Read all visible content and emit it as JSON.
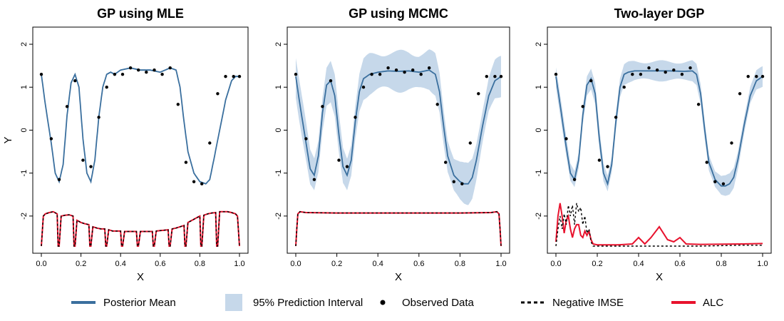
{
  "legend": {
    "mean": "Posterior Mean",
    "interval": "95% Prediction Interval",
    "observed": "Observed Data",
    "imse": "Negative IMSE",
    "alc": "ALC"
  },
  "colors": {
    "mean": "#3a6f9e",
    "band": "#c6d8ea",
    "observed": "#000000",
    "imse": "#000000",
    "alc": "#e8122d"
  },
  "chart_data": [
    {
      "type": "line",
      "title": "GP using MLE",
      "xlabel": "X",
      "ylabel": "Y",
      "xlim": [
        0,
        1
      ],
      "ylim": [
        -2.7,
        2.2
      ],
      "xticks": [
        "0.0",
        "0.2",
        "0.4",
        "0.6",
        "0.8",
        "1.0"
      ],
      "yticks": [
        "2",
        "1",
        "0",
        "-1",
        "-2"
      ],
      "observed": {
        "x": [
          0.0,
          0.05,
          0.09,
          0.13,
          0.17,
          0.21,
          0.25,
          0.29,
          0.33,
          0.37,
          0.41,
          0.45,
          0.49,
          0.53,
          0.57,
          0.61,
          0.65,
          0.69,
          0.73,
          0.77,
          0.81,
          0.85,
          0.89,
          0.93,
          0.97,
          1.0
        ],
        "y": [
          1.3,
          -0.2,
          -1.15,
          0.55,
          1.15,
          -0.7,
          -0.85,
          0.3,
          1.0,
          1.3,
          1.3,
          1.45,
          1.4,
          1.35,
          1.4,
          1.3,
          1.45,
          0.6,
          -0.75,
          -1.2,
          -1.25,
          -0.3,
          0.85,
          1.25,
          1.25,
          1.25
        ]
      },
      "mean": {
        "x": [
          0.0,
          0.02,
          0.05,
          0.07,
          0.09,
          0.11,
          0.13,
          0.15,
          0.17,
          0.19,
          0.21,
          0.23,
          0.25,
          0.27,
          0.29,
          0.31,
          0.33,
          0.35,
          0.37,
          0.4,
          0.45,
          0.5,
          0.55,
          0.6,
          0.65,
          0.68,
          0.7,
          0.72,
          0.74,
          0.77,
          0.8,
          0.83,
          0.85,
          0.87,
          0.9,
          0.93,
          0.96,
          0.98,
          1.0
        ],
        "y": [
          1.3,
          0.6,
          -0.3,
          -1.0,
          -1.2,
          -0.8,
          0.35,
          1.1,
          1.3,
          1.0,
          -0.2,
          -1.0,
          -1.2,
          -0.7,
          0.3,
          1.0,
          1.3,
          1.35,
          1.3,
          1.4,
          1.45,
          1.4,
          1.4,
          1.35,
          1.45,
          1.4,
          1.0,
          0.2,
          -0.5,
          -1.0,
          -1.2,
          -1.25,
          -1.15,
          -0.7,
          0.0,
          0.7,
          1.15,
          1.25,
          1.25
        ]
      },
      "band_halfwidth": 0.02,
      "imse": {
        "x": [
          0.0,
          0.01,
          0.02,
          0.04,
          0.06,
          0.08,
          0.085,
          0.09,
          0.1,
          0.12,
          0.14,
          0.16,
          0.165,
          0.17,
          0.18,
          0.2,
          0.22,
          0.24,
          0.245,
          0.25,
          0.26,
          0.28,
          0.3,
          0.32,
          0.325,
          0.33,
          0.34,
          0.36,
          0.38,
          0.4,
          0.405,
          0.41,
          0.42,
          0.44,
          0.46,
          0.48,
          0.485,
          0.49,
          0.5,
          0.52,
          0.54,
          0.56,
          0.565,
          0.57,
          0.58,
          0.6,
          0.62,
          0.64,
          0.645,
          0.65,
          0.66,
          0.68,
          0.7,
          0.72,
          0.725,
          0.73,
          0.74,
          0.76,
          0.78,
          0.8,
          0.805,
          0.81,
          0.82,
          0.84,
          0.86,
          0.88,
          0.885,
          0.89,
          0.9,
          0.92,
          0.94,
          0.96,
          0.98,
          0.99,
          1.0
        ],
        "y": [
          -2.7,
          -2.0,
          -1.95,
          -1.92,
          -1.9,
          -1.95,
          -2.7,
          -2.7,
          -2.0,
          -1.98,
          -1.97,
          -2.0,
          -2.7,
          -2.7,
          -2.1,
          -2.15,
          -2.18,
          -2.2,
          -2.7,
          -2.7,
          -2.25,
          -2.28,
          -2.3,
          -2.3,
          -2.7,
          -2.7,
          -2.32,
          -2.35,
          -2.35,
          -2.35,
          -2.7,
          -2.7,
          -2.36,
          -2.36,
          -2.36,
          -2.36,
          -2.7,
          -2.7,
          -2.36,
          -2.36,
          -2.36,
          -2.36,
          -2.7,
          -2.7,
          -2.35,
          -2.34,
          -2.33,
          -2.32,
          -2.7,
          -2.7,
          -2.3,
          -2.28,
          -2.25,
          -2.22,
          -2.7,
          -2.7,
          -2.15,
          -2.1,
          -2.05,
          -2.0,
          -2.7,
          -2.7,
          -1.98,
          -1.95,
          -1.93,
          -1.92,
          -2.7,
          -2.7,
          -1.9,
          -1.9,
          -1.9,
          -1.92,
          -1.95,
          -2.0,
          -2.7
        ]
      },
      "alc": {
        "x": [
          0.0,
          0.01,
          0.02,
          0.04,
          0.06,
          0.08,
          0.085,
          0.09,
          0.1,
          0.12,
          0.14,
          0.16,
          0.165,
          0.17,
          0.18,
          0.2,
          0.22,
          0.24,
          0.245,
          0.25,
          0.26,
          0.28,
          0.3,
          0.32,
          0.325,
          0.33,
          0.34,
          0.36,
          0.38,
          0.4,
          0.405,
          0.41,
          0.42,
          0.44,
          0.46,
          0.48,
          0.485,
          0.49,
          0.5,
          0.52,
          0.54,
          0.56,
          0.565,
          0.57,
          0.58,
          0.6,
          0.62,
          0.64,
          0.645,
          0.65,
          0.66,
          0.68,
          0.7,
          0.72,
          0.725,
          0.73,
          0.74,
          0.76,
          0.78,
          0.8,
          0.805,
          0.81,
          0.82,
          0.84,
          0.86,
          0.88,
          0.885,
          0.89,
          0.9,
          0.92,
          0.94,
          0.96,
          0.98,
          0.99,
          1.0
        ],
        "y": [
          -2.7,
          -2.0,
          -1.95,
          -1.92,
          -1.9,
          -1.95,
          -2.7,
          -2.7,
          -2.0,
          -1.98,
          -1.97,
          -2.0,
          -2.7,
          -2.7,
          -2.1,
          -2.15,
          -2.18,
          -2.2,
          -2.7,
          -2.7,
          -2.25,
          -2.28,
          -2.3,
          -2.3,
          -2.7,
          -2.7,
          -2.32,
          -2.35,
          -2.35,
          -2.35,
          -2.7,
          -2.7,
          -2.36,
          -2.36,
          -2.36,
          -2.36,
          -2.7,
          -2.7,
          -2.36,
          -2.36,
          -2.36,
          -2.36,
          -2.7,
          -2.7,
          -2.35,
          -2.34,
          -2.33,
          -2.32,
          -2.7,
          -2.7,
          -2.3,
          -2.28,
          -2.25,
          -2.22,
          -2.7,
          -2.7,
          -2.15,
          -2.1,
          -2.05,
          -2.0,
          -2.7,
          -2.7,
          -1.98,
          -1.95,
          -1.93,
          -1.92,
          -2.7,
          -2.7,
          -1.9,
          -1.9,
          -1.9,
          -1.92,
          -1.95,
          -2.0,
          -2.7
        ]
      }
    },
    {
      "type": "line",
      "title": "GP using MCMC",
      "xlabel": "X",
      "ylabel": "",
      "xlim": [
        0,
        1
      ],
      "ylim": [
        -2.7,
        2.2
      ],
      "xticks": [
        "0.0",
        "0.2",
        "0.4",
        "0.6",
        "0.8",
        "1.0"
      ],
      "yticks": [
        "2",
        "1",
        "0",
        "-1",
        "-2"
      ],
      "observed": {
        "x": [
          0.0,
          0.05,
          0.09,
          0.13,
          0.17,
          0.21,
          0.25,
          0.29,
          0.33,
          0.37,
          0.41,
          0.45,
          0.49,
          0.53,
          0.57,
          0.61,
          0.65,
          0.69,
          0.73,
          0.77,
          0.81,
          0.85,
          0.89,
          0.93,
          0.97,
          1.0
        ],
        "y": [
          1.3,
          -0.2,
          -1.15,
          0.55,
          1.15,
          -0.7,
          -0.85,
          0.3,
          1.0,
          1.3,
          1.3,
          1.45,
          1.4,
          1.35,
          1.4,
          1.3,
          1.45,
          0.6,
          -0.75,
          -1.2,
          -1.25,
          -0.3,
          0.85,
          1.25,
          1.25,
          1.25
        ]
      },
      "mean": {
        "x": [
          0.0,
          0.02,
          0.05,
          0.07,
          0.09,
          0.11,
          0.13,
          0.15,
          0.17,
          0.19,
          0.21,
          0.23,
          0.25,
          0.27,
          0.29,
          0.31,
          0.33,
          0.36,
          0.4,
          0.45,
          0.5,
          0.55,
          0.6,
          0.65,
          0.68,
          0.7,
          0.72,
          0.74,
          0.77,
          0.8,
          0.82,
          0.84,
          0.86,
          0.88,
          0.91,
          0.94,
          0.97,
          1.0
        ],
        "y": [
          1.25,
          0.6,
          -0.3,
          -0.9,
          -1.05,
          -0.6,
          0.4,
          1.05,
          1.15,
          0.8,
          -0.1,
          -0.85,
          -1.05,
          -0.7,
          0.2,
          0.9,
          1.2,
          1.3,
          1.35,
          1.38,
          1.37,
          1.38,
          1.35,
          1.4,
          1.3,
          0.9,
          0.1,
          -0.6,
          -1.05,
          -1.2,
          -1.25,
          -1.25,
          -1.1,
          -0.7,
          0.1,
          0.8,
          1.15,
          1.25
        ]
      },
      "band_halfwidth": 0.5,
      "imse": {
        "x": [
          0.0,
          0.005,
          0.01,
          0.02,
          0.05,
          0.2,
          0.5,
          0.8,
          0.95,
          0.98,
          0.99,
          0.995,
          1.0
        ],
        "y": [
          -2.7,
          -2.3,
          -1.95,
          -1.9,
          -1.92,
          -1.93,
          -1.93,
          -1.93,
          -1.92,
          -1.9,
          -1.95,
          -2.3,
          -2.7
        ]
      },
      "alc": {
        "x": [
          0.0,
          0.005,
          0.01,
          0.02,
          0.05,
          0.2,
          0.5,
          0.8,
          0.95,
          0.98,
          0.99,
          0.995,
          1.0
        ],
        "y": [
          -2.7,
          -2.3,
          -1.95,
          -1.9,
          -1.92,
          -1.93,
          -1.93,
          -1.93,
          -1.92,
          -1.9,
          -1.95,
          -2.3,
          -2.7
        ]
      }
    },
    {
      "type": "line",
      "title": "Two-layer DGP",
      "xlabel": "X",
      "ylabel": "",
      "xlim": [
        0,
        1
      ],
      "ylim": [
        -2.7,
        2.2
      ],
      "xticks": [
        "0.0",
        "0.2",
        "0.4",
        "0.6",
        "0.8",
        "1.0"
      ],
      "yticks": [
        "2",
        "1",
        "0",
        "-1",
        "-2"
      ],
      "observed": {
        "x": [
          0.0,
          0.05,
          0.09,
          0.13,
          0.17,
          0.21,
          0.25,
          0.29,
          0.33,
          0.37,
          0.41,
          0.45,
          0.49,
          0.53,
          0.57,
          0.61,
          0.65,
          0.69,
          0.73,
          0.77,
          0.81,
          0.85,
          0.89,
          0.93,
          0.97,
          1.0
        ],
        "y": [
          1.3,
          -0.2,
          -1.15,
          0.55,
          1.15,
          -0.7,
          -0.85,
          0.3,
          1.0,
          1.3,
          1.3,
          1.45,
          1.4,
          1.35,
          1.4,
          1.3,
          1.45,
          0.6,
          -0.75,
          -1.2,
          -1.25,
          -0.3,
          0.85,
          1.25,
          1.25,
          1.25
        ]
      },
      "mean": {
        "x": [
          0.0,
          0.02,
          0.05,
          0.07,
          0.09,
          0.11,
          0.13,
          0.15,
          0.17,
          0.19,
          0.21,
          0.23,
          0.25,
          0.27,
          0.29,
          0.31,
          0.33,
          0.35,
          0.38,
          0.45,
          0.55,
          0.62,
          0.66,
          0.68,
          0.7,
          0.72,
          0.74,
          0.77,
          0.8,
          0.82,
          0.84,
          0.86,
          0.88,
          0.91,
          0.94,
          0.97,
          1.0
        ],
        "y": [
          1.25,
          0.6,
          -0.4,
          -1.0,
          -1.15,
          -0.7,
          0.35,
          1.05,
          1.2,
          0.85,
          -0.2,
          -1.0,
          -1.25,
          -0.8,
          0.2,
          1.0,
          1.3,
          1.35,
          1.38,
          1.38,
          1.38,
          1.37,
          1.38,
          1.3,
          0.85,
          0.0,
          -0.75,
          -1.15,
          -1.3,
          -1.3,
          -1.25,
          -1.1,
          -0.7,
          0.1,
          0.8,
          1.15,
          1.25
        ]
      },
      "band_halfwidth": 0.25,
      "imse": {
        "x": [
          0.0,
          0.01,
          0.02,
          0.03,
          0.04,
          0.05,
          0.06,
          0.07,
          0.08,
          0.09,
          0.1,
          0.11,
          0.12,
          0.13,
          0.14,
          0.15,
          0.16,
          0.17,
          0.18,
          0.2,
          0.3,
          0.5,
          0.7,
          0.9,
          1.0
        ],
        "y": [
          -2.7,
          -2.3,
          -2.0,
          -2.3,
          -1.95,
          -2.2,
          -1.75,
          -2.0,
          -1.75,
          -2.2,
          -1.7,
          -1.9,
          -1.8,
          -2.2,
          -2.0,
          -2.4,
          -2.3,
          -2.6,
          -2.7,
          -2.7,
          -2.7,
          -2.7,
          -2.7,
          -2.68,
          -2.68
        ]
      },
      "alc": {
        "x": [
          0.0,
          0.01,
          0.02,
          0.03,
          0.04,
          0.05,
          0.06,
          0.07,
          0.08,
          0.09,
          0.1,
          0.11,
          0.12,
          0.13,
          0.14,
          0.15,
          0.16,
          0.17,
          0.18,
          0.2,
          0.3,
          0.37,
          0.4,
          0.43,
          0.46,
          0.5,
          0.54,
          0.57,
          0.6,
          0.63,
          0.7,
          0.9,
          1.0
        ],
        "y": [
          -2.6,
          -2.0,
          -1.7,
          -2.0,
          -2.4,
          -2.1,
          -2.0,
          -2.3,
          -2.5,
          -2.3,
          -2.2,
          -2.2,
          -2.45,
          -2.5,
          -2.35,
          -2.45,
          -2.35,
          -2.55,
          -2.65,
          -2.67,
          -2.67,
          -2.65,
          -2.5,
          -2.65,
          -2.5,
          -2.25,
          -2.55,
          -2.6,
          -2.5,
          -2.65,
          -2.66,
          -2.65,
          -2.64
        ]
      }
    }
  ]
}
